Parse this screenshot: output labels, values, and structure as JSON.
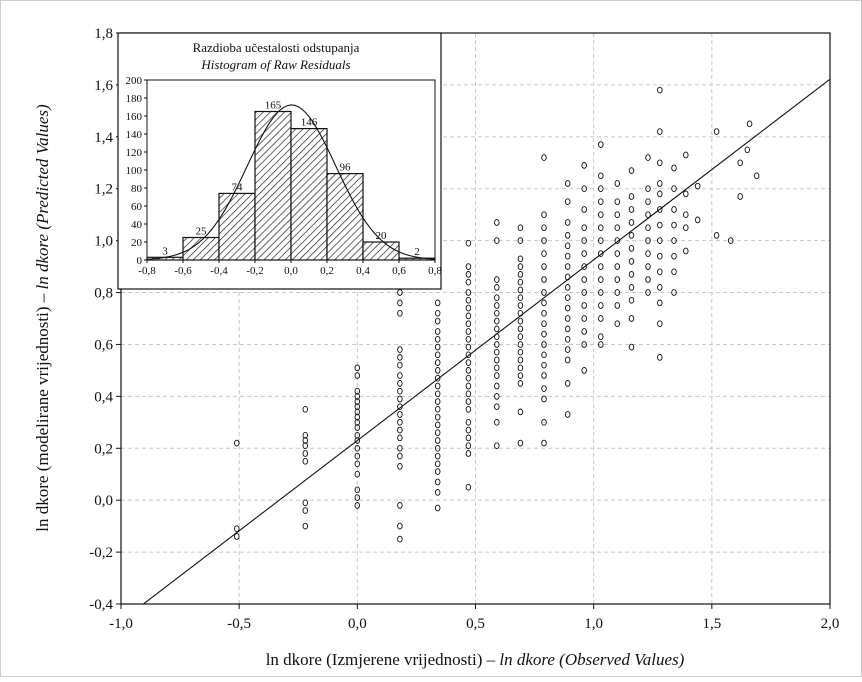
{
  "chart_data": [
    {
      "type": "scatter",
      "xlabel": "ln dkore  (Izmjerene vrijednosti) – ",
      "xlabel_italic": "ln dkore (Observed Values)",
      "ylabel": "ln dkore (modelirane vrijednosti) – ",
      "ylabel_italic": "ln dkore (Predicted Values)",
      "xlim": [
        -1.0,
        2.0
      ],
      "ylim": [
        -0.4,
        1.8
      ],
      "x_ticks": [
        -1.0,
        -0.5,
        0.0,
        0.5,
        1.0,
        1.5,
        2.0
      ],
      "x_tick_labels": [
        "-1,0",
        "-0,5",
        "0,0",
        "0,5",
        "1,0",
        "1,5",
        "2,0"
      ],
      "y_ticks": [
        -0.4,
        -0.2,
        0.0,
        0.2,
        0.4,
        0.6,
        0.8,
        1.0,
        1.2,
        1.4,
        1.6,
        1.8
      ],
      "y_tick_labels": [
        "-0,4",
        "-0,2",
        "0,0",
        "0,2",
        "0,4",
        "0,6",
        "0,8",
        "1,0",
        "1,2",
        "1,4",
        "1,6",
        "1,8"
      ],
      "grid": true,
      "fit_line": {
        "slope": 0.696,
        "intercept": 0.23
      },
      "points": [
        [
          -0.51,
          0.22
        ],
        [
          -0.51,
          -0.11
        ],
        [
          -0.51,
          -0.14
        ],
        [
          -0.22,
          0.35
        ],
        [
          -0.22,
          0.25
        ],
        [
          -0.22,
          0.23
        ],
        [
          -0.22,
          0.21
        ],
        [
          -0.22,
          0.18
        ],
        [
          -0.22,
          0.15
        ],
        [
          -0.22,
          -0.01
        ],
        [
          -0.22,
          -0.04
        ],
        [
          -0.22,
          -0.1
        ],
        [
          0.0,
          0.51
        ],
        [
          0.0,
          0.48
        ],
        [
          0.0,
          0.42
        ],
        [
          0.0,
          0.4
        ],
        [
          0.0,
          0.38
        ],
        [
          0.0,
          0.36
        ],
        [
          0.0,
          0.34
        ],
        [
          0.0,
          0.32
        ],
        [
          0.0,
          0.3
        ],
        [
          0.0,
          0.28
        ],
        [
          0.0,
          0.25
        ],
        [
          0.0,
          0.23
        ],
        [
          0.0,
          0.2
        ],
        [
          0.0,
          0.17
        ],
        [
          0.0,
          0.14
        ],
        [
          0.0,
          0.1
        ],
        [
          0.0,
          0.04
        ],
        [
          0.0,
          0.01
        ],
        [
          0.0,
          -0.02
        ],
        [
          0.18,
          0.8
        ],
        [
          0.18,
          0.76
        ],
        [
          0.18,
          0.72
        ],
        [
          0.18,
          0.58
        ],
        [
          0.18,
          0.55
        ],
        [
          0.18,
          0.52
        ],
        [
          0.18,
          0.48
        ],
        [
          0.18,
          0.45
        ],
        [
          0.18,
          0.42
        ],
        [
          0.18,
          0.39
        ],
        [
          0.18,
          0.36
        ],
        [
          0.18,
          0.33
        ],
        [
          0.18,
          0.3
        ],
        [
          0.18,
          0.27
        ],
        [
          0.18,
          0.24
        ],
        [
          0.18,
          0.2
        ],
        [
          0.18,
          0.17
        ],
        [
          0.18,
          0.13
        ],
        [
          0.18,
          -0.02
        ],
        [
          0.18,
          -0.1
        ],
        [
          0.18,
          -0.15
        ],
        [
          0.34,
          0.76
        ],
        [
          0.34,
          0.72
        ],
        [
          0.34,
          0.69
        ],
        [
          0.34,
          0.65
        ],
        [
          0.34,
          0.62
        ],
        [
          0.34,
          0.59
        ],
        [
          0.34,
          0.56
        ],
        [
          0.34,
          0.53
        ],
        [
          0.34,
          0.5
        ],
        [
          0.34,
          0.47
        ],
        [
          0.34,
          0.44
        ],
        [
          0.34,
          0.41
        ],
        [
          0.34,
          0.38
        ],
        [
          0.34,
          0.35
        ],
        [
          0.34,
          0.32
        ],
        [
          0.34,
          0.29
        ],
        [
          0.34,
          0.26
        ],
        [
          0.34,
          0.23
        ],
        [
          0.34,
          0.2
        ],
        [
          0.34,
          0.17
        ],
        [
          0.34,
          0.14
        ],
        [
          0.34,
          0.11
        ],
        [
          0.34,
          0.07
        ],
        [
          0.34,
          0.03
        ],
        [
          0.34,
          -0.03
        ],
        [
          0.47,
          0.99
        ],
        [
          0.47,
          0.9
        ],
        [
          0.47,
          0.87
        ],
        [
          0.47,
          0.84
        ],
        [
          0.47,
          0.8
        ],
        [
          0.47,
          0.77
        ],
        [
          0.47,
          0.74
        ],
        [
          0.47,
          0.71
        ],
        [
          0.47,
          0.68
        ],
        [
          0.47,
          0.65
        ],
        [
          0.47,
          0.62
        ],
        [
          0.47,
          0.59
        ],
        [
          0.47,
          0.56
        ],
        [
          0.47,
          0.53
        ],
        [
          0.47,
          0.5
        ],
        [
          0.47,
          0.47
        ],
        [
          0.47,
          0.44
        ],
        [
          0.47,
          0.41
        ],
        [
          0.47,
          0.38
        ],
        [
          0.47,
          0.35
        ],
        [
          0.47,
          0.3
        ],
        [
          0.47,
          0.27
        ],
        [
          0.47,
          0.24
        ],
        [
          0.47,
          0.21
        ],
        [
          0.47,
          0.18
        ],
        [
          0.47,
          0.05
        ],
        [
          0.59,
          1.07
        ],
        [
          0.59,
          1.0
        ],
        [
          0.59,
          0.85
        ],
        [
          0.59,
          0.82
        ],
        [
          0.59,
          0.78
        ],
        [
          0.59,
          0.75
        ],
        [
          0.59,
          0.72
        ],
        [
          0.59,
          0.69
        ],
        [
          0.59,
          0.66
        ],
        [
          0.59,
          0.63
        ],
        [
          0.59,
          0.6
        ],
        [
          0.59,
          0.57
        ],
        [
          0.59,
          0.54
        ],
        [
          0.59,
          0.51
        ],
        [
          0.59,
          0.48
        ],
        [
          0.59,
          0.44
        ],
        [
          0.59,
          0.4
        ],
        [
          0.59,
          0.36
        ],
        [
          0.59,
          0.3
        ],
        [
          0.59,
          0.21
        ],
        [
          0.69,
          1.05
        ],
        [
          0.69,
          1.0
        ],
        [
          0.69,
          0.93
        ],
        [
          0.69,
          0.9
        ],
        [
          0.69,
          0.87
        ],
        [
          0.69,
          0.84
        ],
        [
          0.69,
          0.81
        ],
        [
          0.69,
          0.78
        ],
        [
          0.69,
          0.75
        ],
        [
          0.69,
          0.72
        ],
        [
          0.69,
          0.69
        ],
        [
          0.69,
          0.66
        ],
        [
          0.69,
          0.63
        ],
        [
          0.69,
          0.6
        ],
        [
          0.69,
          0.57
        ],
        [
          0.69,
          0.54
        ],
        [
          0.69,
          0.51
        ],
        [
          0.69,
          0.48
        ],
        [
          0.69,
          0.45
        ],
        [
          0.69,
          0.34
        ],
        [
          0.69,
          0.22
        ],
        [
          0.79,
          1.32
        ],
        [
          0.79,
          1.1
        ],
        [
          0.79,
          1.05
        ],
        [
          0.79,
          1.0
        ],
        [
          0.79,
          0.95
        ],
        [
          0.79,
          0.9
        ],
        [
          0.79,
          0.85
        ],
        [
          0.79,
          0.8
        ],
        [
          0.79,
          0.76
        ],
        [
          0.79,
          0.72
        ],
        [
          0.79,
          0.68
        ],
        [
          0.79,
          0.64
        ],
        [
          0.79,
          0.6
        ],
        [
          0.79,
          0.56
        ],
        [
          0.79,
          0.52
        ],
        [
          0.79,
          0.48
        ],
        [
          0.79,
          0.43
        ],
        [
          0.79,
          0.39
        ],
        [
          0.79,
          0.3
        ],
        [
          0.79,
          0.22
        ],
        [
          0.89,
          1.22
        ],
        [
          0.89,
          1.15
        ],
        [
          0.89,
          1.07
        ],
        [
          0.89,
          1.02
        ],
        [
          0.89,
          0.98
        ],
        [
          0.89,
          0.94
        ],
        [
          0.89,
          0.9
        ],
        [
          0.89,
          0.86
        ],
        [
          0.89,
          0.82
        ],
        [
          0.89,
          0.78
        ],
        [
          0.89,
          0.74
        ],
        [
          0.89,
          0.7
        ],
        [
          0.89,
          0.66
        ],
        [
          0.89,
          0.62
        ],
        [
          0.89,
          0.58
        ],
        [
          0.89,
          0.54
        ],
        [
          0.89,
          0.45
        ],
        [
          0.89,
          0.33
        ],
        [
          0.96,
          1.29
        ],
        [
          0.96,
          1.2
        ],
        [
          0.96,
          1.12
        ],
        [
          0.96,
          1.05
        ],
        [
          0.96,
          1.0
        ],
        [
          0.96,
          0.95
        ],
        [
          0.96,
          0.9
        ],
        [
          0.96,
          0.85
        ],
        [
          0.96,
          0.8
        ],
        [
          0.96,
          0.75
        ],
        [
          0.96,
          0.7
        ],
        [
          0.96,
          0.65
        ],
        [
          0.96,
          0.6
        ],
        [
          0.96,
          0.5
        ],
        [
          1.03,
          1.37
        ],
        [
          1.03,
          1.25
        ],
        [
          1.03,
          1.2
        ],
        [
          1.03,
          1.15
        ],
        [
          1.03,
          1.1
        ],
        [
          1.03,
          1.05
        ],
        [
          1.03,
          1.0
        ],
        [
          1.03,
          0.95
        ],
        [
          1.03,
          0.9
        ],
        [
          1.03,
          0.85
        ],
        [
          1.03,
          0.8
        ],
        [
          1.03,
          0.75
        ],
        [
          1.03,
          0.7
        ],
        [
          1.03,
          0.63
        ],
        [
          1.03,
          0.6
        ],
        [
          1.1,
          1.22
        ],
        [
          1.1,
          1.15
        ],
        [
          1.1,
          1.1
        ],
        [
          1.1,
          1.05
        ],
        [
          1.1,
          1.0
        ],
        [
          1.1,
          0.95
        ],
        [
          1.1,
          0.9
        ],
        [
          1.1,
          0.85
        ],
        [
          1.1,
          0.8
        ],
        [
          1.1,
          0.75
        ],
        [
          1.1,
          0.68
        ],
        [
          1.16,
          1.27
        ],
        [
          1.16,
          1.17
        ],
        [
          1.16,
          1.12
        ],
        [
          1.16,
          1.07
        ],
        [
          1.16,
          1.02
        ],
        [
          1.16,
          0.97
        ],
        [
          1.16,
          0.92
        ],
        [
          1.16,
          0.87
        ],
        [
          1.16,
          0.82
        ],
        [
          1.16,
          0.77
        ],
        [
          1.16,
          0.7
        ],
        [
          1.16,
          0.59
        ],
        [
          1.23,
          1.32
        ],
        [
          1.23,
          1.2
        ],
        [
          1.23,
          1.15
        ],
        [
          1.23,
          1.1
        ],
        [
          1.23,
          1.05
        ],
        [
          1.23,
          1.0
        ],
        [
          1.23,
          0.95
        ],
        [
          1.23,
          0.9
        ],
        [
          1.23,
          0.85
        ],
        [
          1.23,
          0.8
        ],
        [
          1.28,
          1.58
        ],
        [
          1.28,
          1.42
        ],
        [
          1.28,
          1.3
        ],
        [
          1.28,
          1.22
        ],
        [
          1.28,
          1.18
        ],
        [
          1.28,
          1.12
        ],
        [
          1.28,
          1.06
        ],
        [
          1.28,
          1.0
        ],
        [
          1.28,
          0.94
        ],
        [
          1.28,
          0.88
        ],
        [
          1.28,
          0.82
        ],
        [
          1.28,
          0.76
        ],
        [
          1.28,
          0.68
        ],
        [
          1.28,
          0.55
        ],
        [
          1.34,
          1.28
        ],
        [
          1.34,
          1.2
        ],
        [
          1.34,
          1.12
        ],
        [
          1.34,
          1.06
        ],
        [
          1.34,
          1.0
        ],
        [
          1.34,
          0.94
        ],
        [
          1.34,
          0.88
        ],
        [
          1.34,
          0.8
        ],
        [
          1.39,
          1.33
        ],
        [
          1.39,
          1.18
        ],
        [
          1.39,
          1.1
        ],
        [
          1.39,
          1.05
        ],
        [
          1.39,
          0.96
        ],
        [
          1.44,
          1.21
        ],
        [
          1.44,
          1.08
        ],
        [
          1.52,
          1.42
        ],
        [
          1.52,
          1.02
        ],
        [
          1.58,
          1.0
        ],
        [
          1.62,
          1.3
        ],
        [
          1.62,
          1.17
        ],
        [
          1.65,
          1.35
        ],
        [
          1.66,
          1.45
        ],
        [
          1.69,
          1.25
        ]
      ]
    },
    {
      "type": "bar",
      "title": "Razdioba učestalosti odstupanja",
      "subtitle": "Histogram of Raw Residuals",
      "categories": [
        "-0,8–-0,6",
        "-0,6–-0,4",
        "-0,4–-0,2",
        "-0,2–0,0",
        "0,0–0,2",
        "0,2–0,4",
        "0,4–0,6",
        "0,6–0,8"
      ],
      "values": [
        3,
        25,
        74,
        165,
        146,
        96,
        20,
        2
      ],
      "value_labels": [
        "3",
        "25",
        "74",
        "165",
        "146",
        "96",
        "20",
        "2"
      ],
      "xlim": [
        -0.8,
        0.8
      ],
      "ylim": [
        0,
        200
      ],
      "x_tick_labels": [
        "-0,8",
        "-0,6",
        "-0,4",
        "-0,2",
        "0,0",
        "0,2",
        "0,4",
        "0,6",
        "0,8"
      ],
      "y_tick_labels": [
        "0",
        "20",
        "40",
        "60",
        "80",
        "100",
        "120",
        "140",
        "160",
        "180",
        "200"
      ],
      "normal_curve": true
    }
  ]
}
